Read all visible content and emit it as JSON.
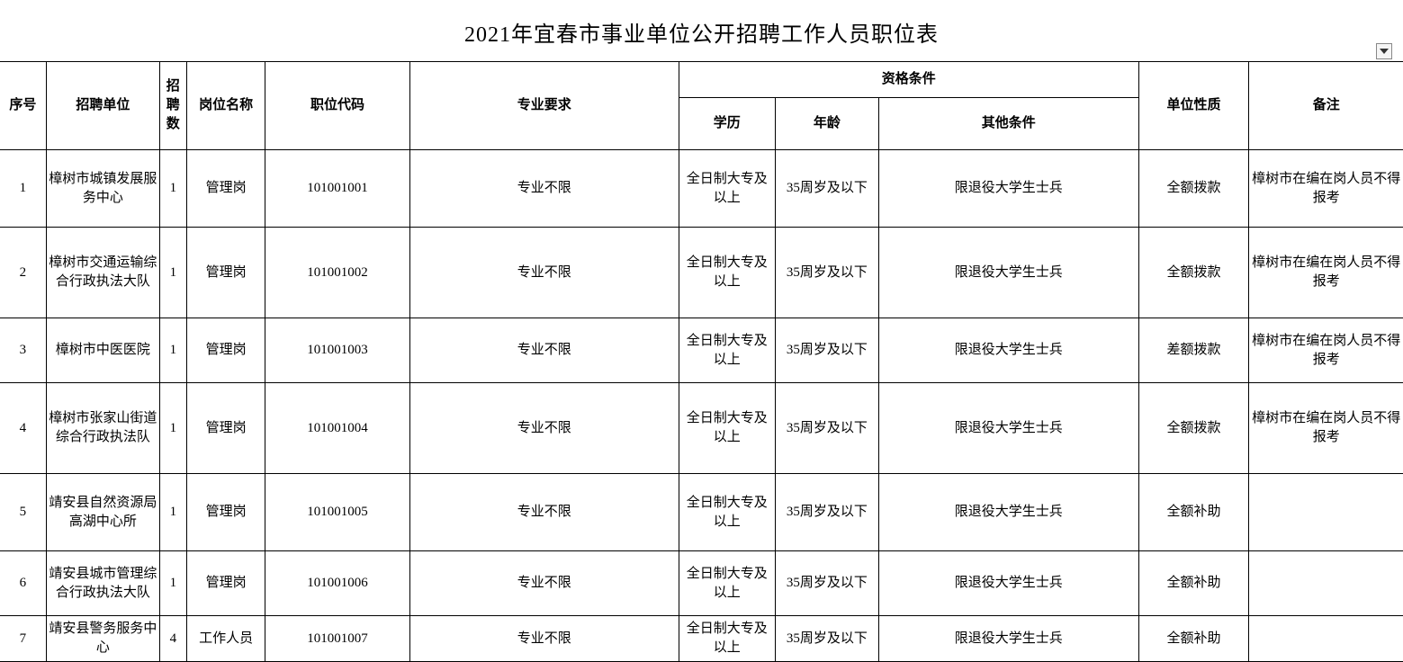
{
  "title": "2021年宜春市事业单位公开招聘工作人员职位表",
  "headers": {
    "seq": "序号",
    "unit": "招聘单位",
    "count": "招聘数",
    "post": "岗位名称",
    "code": "职位代码",
    "major": "专业要求",
    "qualification": "资格条件",
    "edu": "学历",
    "age": "年龄",
    "other": "其他条件",
    "nature": "单位性质",
    "remark": "备注"
  },
  "rows": [
    {
      "seq": "1",
      "unit": "樟树市城镇发展服务中心",
      "count": "1",
      "post": "管理岗",
      "code": "101001001",
      "major": "专业不限",
      "edu": "全日制大专及以上",
      "age": "35周岁及以下",
      "other": "限退役大学生士兵",
      "nature": "全额拨款",
      "remark": "樟树市在编在岗人员不得报考"
    },
    {
      "seq": "2",
      "unit": "樟树市交通运输综合行政执法大队",
      "count": "1",
      "post": "管理岗",
      "code": "101001002",
      "major": "专业不限",
      "edu": "全日制大专及以上",
      "age": "35周岁及以下",
      "other": "限退役大学生士兵",
      "nature": "全额拨款",
      "remark": "樟树市在编在岗人员不得报考"
    },
    {
      "seq": "3",
      "unit": "樟树市中医医院",
      "count": "1",
      "post": "管理岗",
      "code": "101001003",
      "major": "专业不限",
      "edu": "全日制大专及以上",
      "age": "35周岁及以下",
      "other": "限退役大学生士兵",
      "nature": "差额拨款",
      "remark": "樟树市在编在岗人员不得报考"
    },
    {
      "seq": "4",
      "unit": "樟树市张家山街道综合行政执法队",
      "count": "1",
      "post": "管理岗",
      "code": "101001004",
      "major": "专业不限",
      "edu": "全日制大专及以上",
      "age": "35周岁及以下",
      "other": "限退役大学生士兵",
      "nature": "全额拨款",
      "remark": "樟树市在编在岗人员不得报考"
    },
    {
      "seq": "5",
      "unit": "靖安县自然资源局高湖中心所",
      "count": "1",
      "post": "管理岗",
      "code": "101001005",
      "major": "专业不限",
      "edu": "全日制大专及以上",
      "age": "35周岁及以下",
      "other": "限退役大学生士兵",
      "nature": "全额补助",
      "remark": ""
    },
    {
      "seq": "6",
      "unit": "靖安县城市管理综合行政执法大队",
      "count": "1",
      "post": "管理岗",
      "code": "101001006",
      "major": "专业不限",
      "edu": "全日制大专及以上",
      "age": "35周岁及以下",
      "other": "限退役大学生士兵",
      "nature": "全额补助",
      "remark": ""
    },
    {
      "seq": "7",
      "unit": "靖安县警务服务中心",
      "count": "4",
      "post": "工作人员",
      "code": "101001007",
      "major": "专业不限",
      "edu": "全日制大专及以上",
      "age": "35周岁及以下",
      "other": "限退役大学生士兵",
      "nature": "全额补助",
      "remark": ""
    }
  ]
}
